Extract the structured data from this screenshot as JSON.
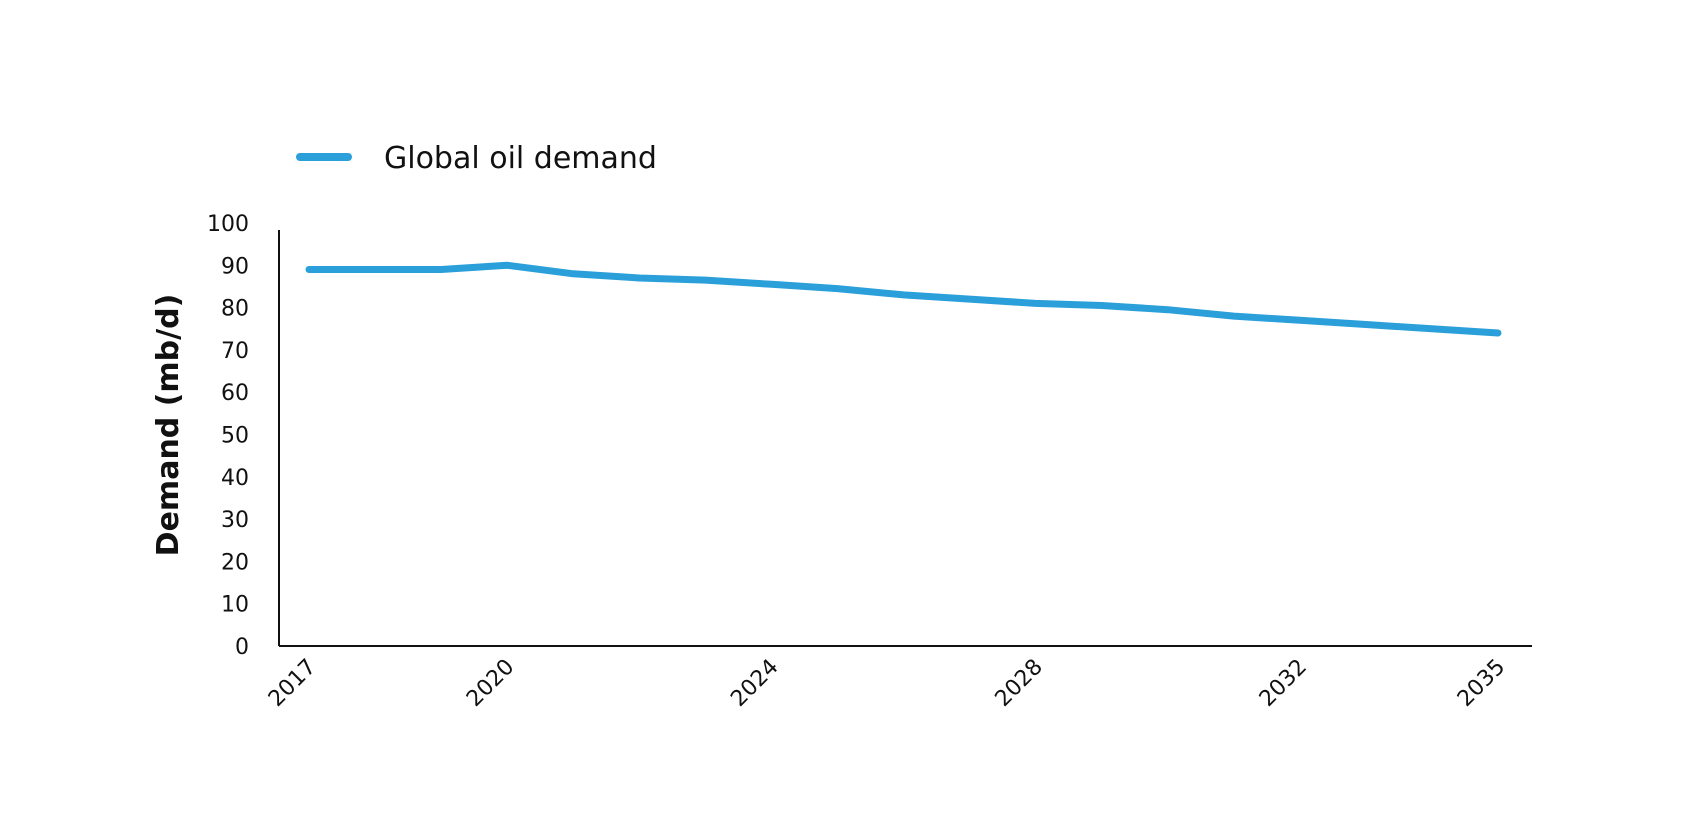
{
  "chart_data": {
    "type": "line",
    "title": "",
    "xlabel": "",
    "ylabel": "Demand (mb/d)",
    "xlim": [
      2017,
      2035
    ],
    "ylim": [
      0,
      100
    ],
    "x_ticks": [
      2017,
      2020,
      2024,
      2028,
      2032,
      2035
    ],
    "y_ticks": [
      0,
      10,
      20,
      30,
      40,
      50,
      60,
      70,
      80,
      90,
      100
    ],
    "grid": false,
    "legend_position": "top-left",
    "series": [
      {
        "name": "Global oil demand",
        "color": "#2b9fd9",
        "x": [
          2017,
          2018,
          2019,
          2020,
          2021,
          2022,
          2023,
          2024,
          2025,
          2026,
          2027,
          2028,
          2029,
          2030,
          2031,
          2032,
          2033,
          2034,
          2035
        ],
        "y": [
          89,
          89,
          89,
          90,
          88,
          87,
          86.5,
          85.5,
          84.5,
          83,
          82,
          81,
          80.5,
          79.5,
          78,
          77,
          76,
          75,
          74
        ]
      }
    ]
  }
}
